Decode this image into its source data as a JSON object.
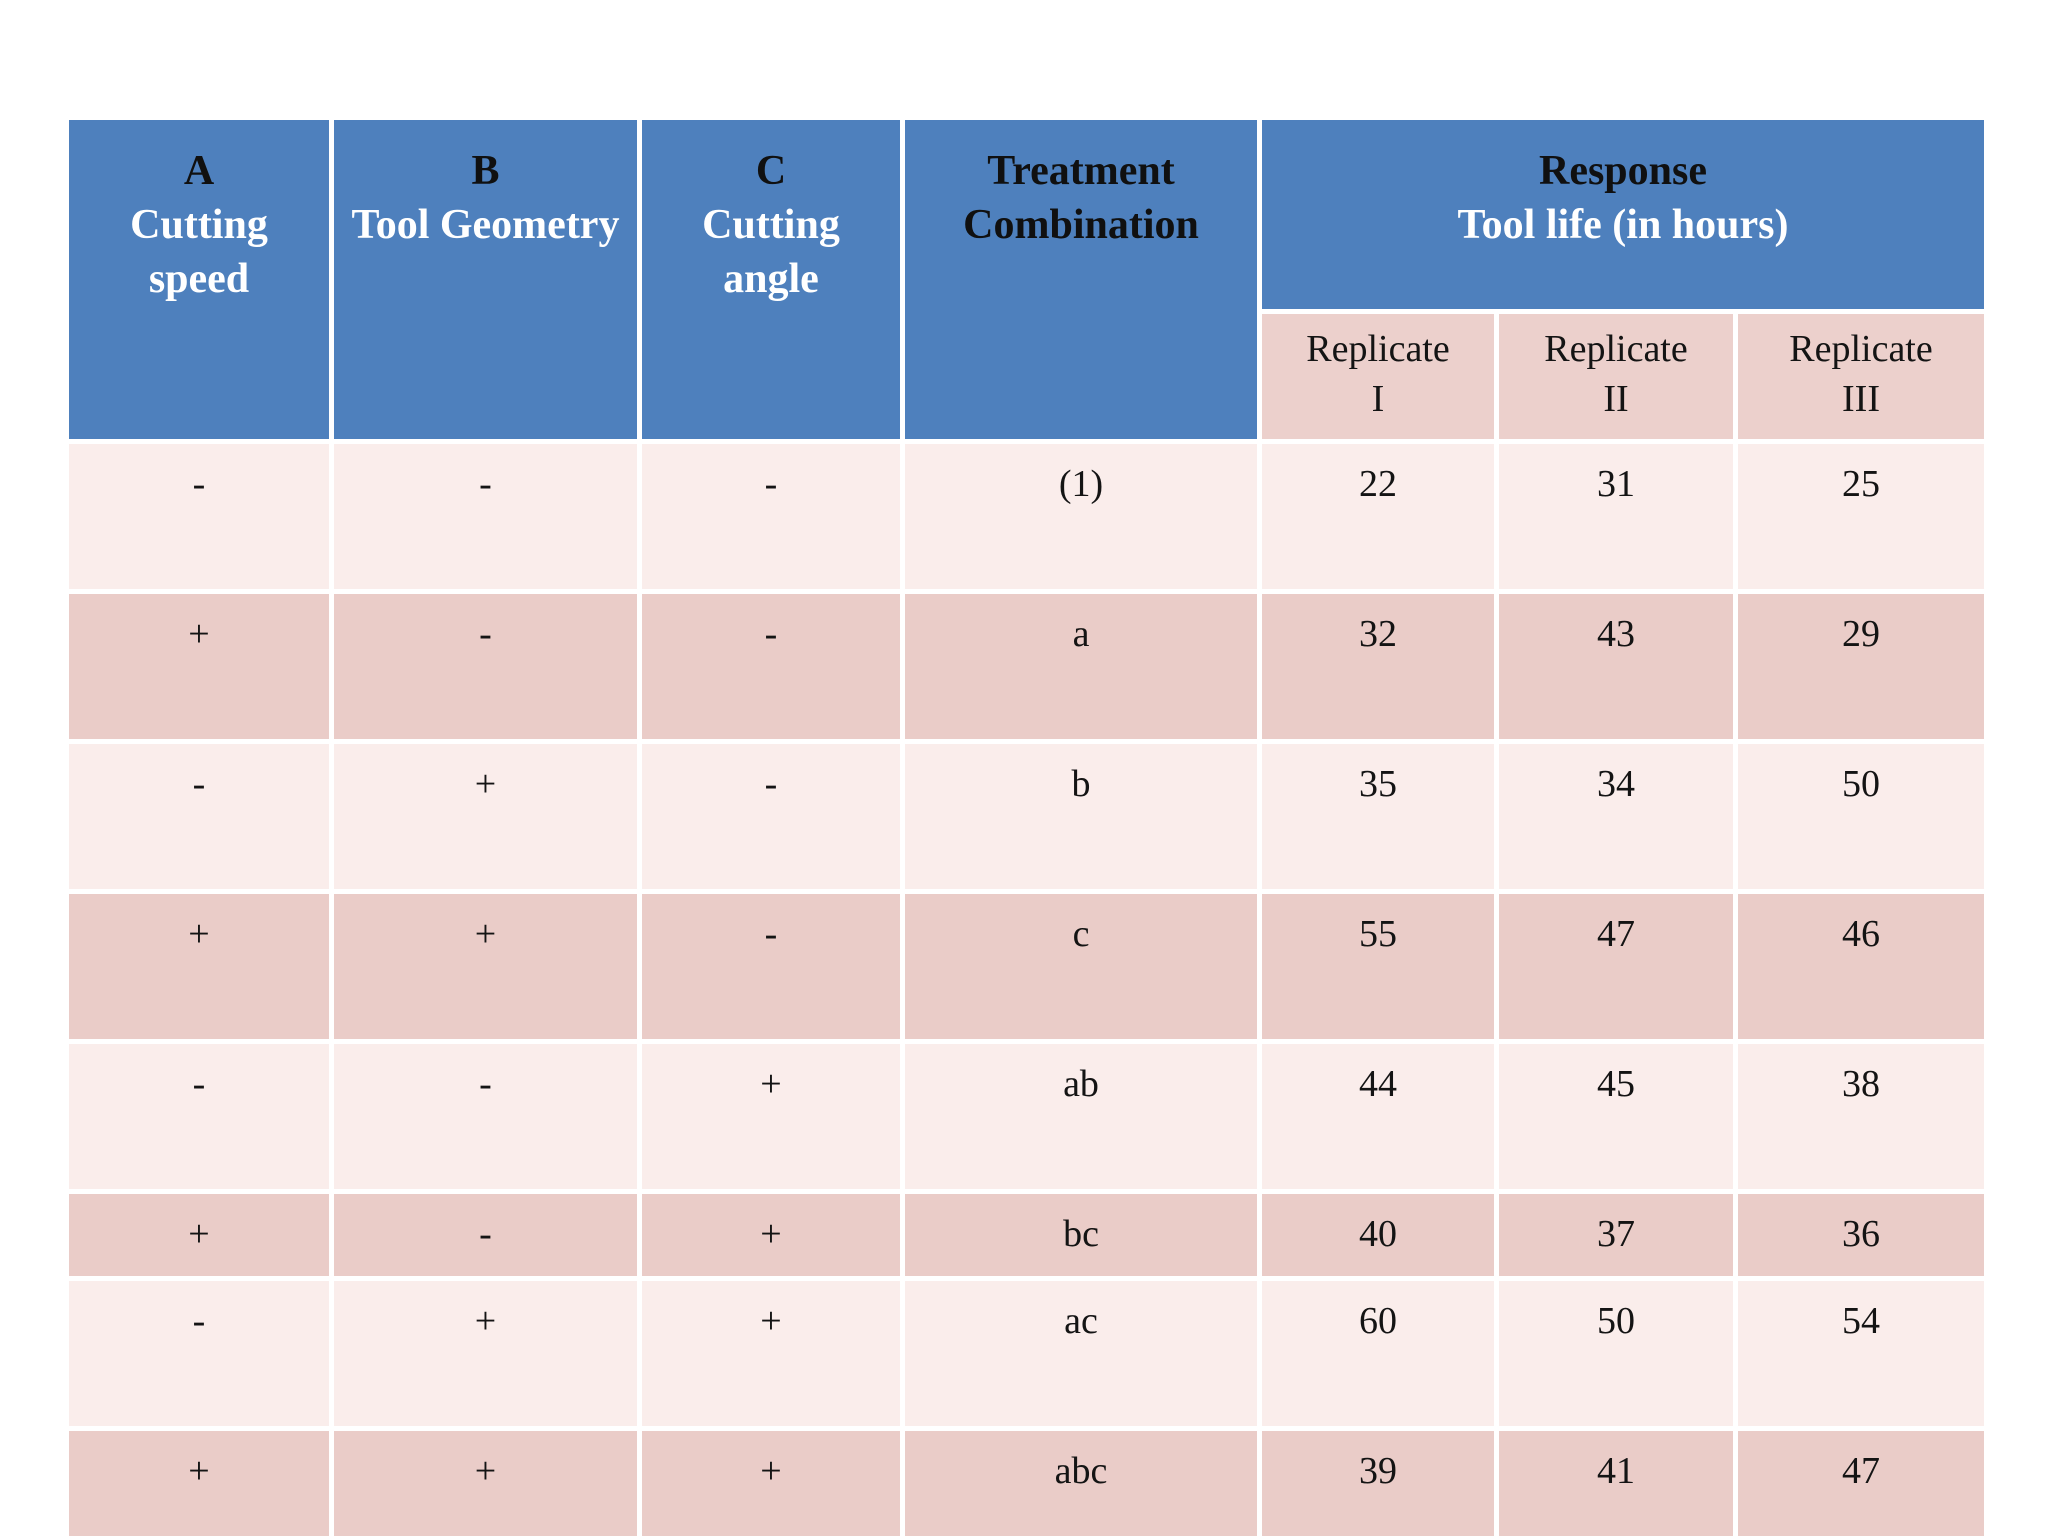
{
  "colors": {
    "page_bg": "#ffffff",
    "header_blue": "#4e80bd",
    "header_dark_text": "#101010",
    "header_light_text": "#ffffff",
    "replicate_bg": "#ecd0cc",
    "row_light": "#faedeb",
    "row_dark": "#eaccc8",
    "body_text": "#141414"
  },
  "table": {
    "header": {
      "colA": {
        "l1": "A",
        "l2": "Cutting",
        "l3": "speed"
      },
      "colB": {
        "l1": "B",
        "l2": "Tool Geometry"
      },
      "colC": {
        "l1": "C",
        "l2": "Cutting",
        "l3": "angle"
      },
      "treatment": {
        "l1": "Treatment",
        "l2": "Combination"
      },
      "response": {
        "l1": "Response",
        "l2": "Tool life (in hours)"
      },
      "replicates": [
        {
          "word": "Replicate",
          "numeral": "I"
        },
        {
          "word": "Replicate",
          "numeral": "II"
        },
        {
          "word": "Replicate",
          "numeral": "III"
        }
      ]
    },
    "rows": [
      {
        "a": "-",
        "b": "-",
        "c": "-",
        "tc": "(1)",
        "r1": "22",
        "r2": "31",
        "r3": "25"
      },
      {
        "a": "+",
        "b": "-",
        "c": "-",
        "tc": "a",
        "r1": "32",
        "r2": "43",
        "r3": "29"
      },
      {
        "a": "-",
        "b": "+",
        "c": "-",
        "tc": "b",
        "r1": "35",
        "r2": "34",
        "r3": "50"
      },
      {
        "a": "+",
        "b": "+",
        "c": "-",
        "tc": "c",
        "r1": "55",
        "r2": "47",
        "r3": "46"
      },
      {
        "a": "-",
        "b": "-",
        "c": "+",
        "tc": "ab",
        "r1": "44",
        "r2": "45",
        "r3": "38"
      },
      {
        "a": "+",
        "b": "-",
        "c": "+",
        "tc": "bc",
        "r1": "40",
        "r2": "37",
        "r3": "36"
      },
      {
        "a": "-",
        "b": "+",
        "c": "+",
        "tc": "ac",
        "r1": "60",
        "r2": "50",
        "r3": "54"
      },
      {
        "a": "+",
        "b": "+",
        "c": "+",
        "tc": "abc",
        "r1": "39",
        "r2": "41",
        "r3": "47"
      }
    ]
  }
}
